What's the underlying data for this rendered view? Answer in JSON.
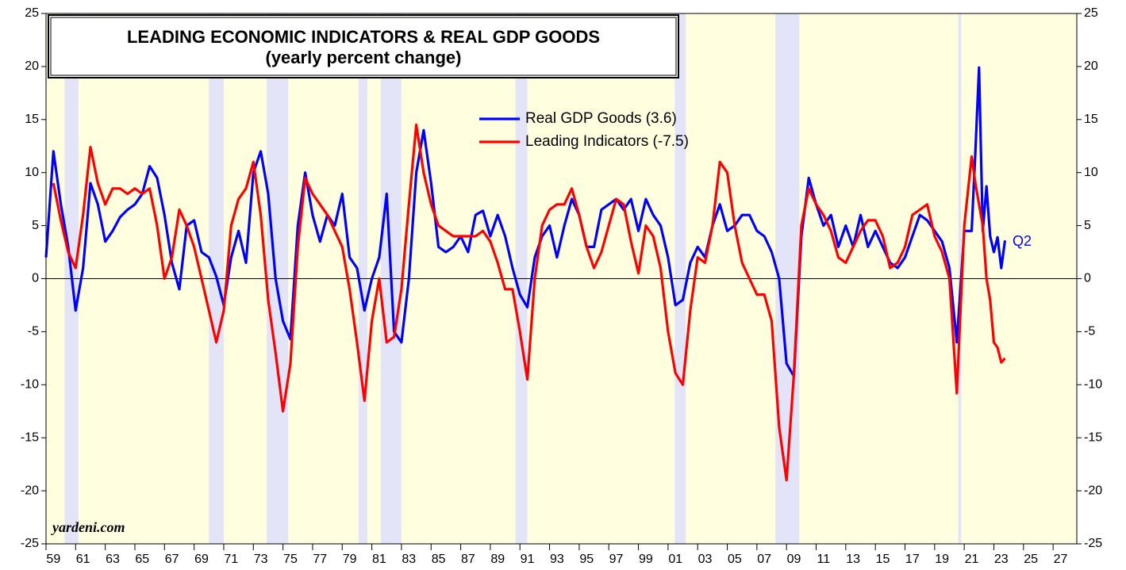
{
  "chart_data": {
    "type": "line",
    "title": "LEADING ECONOMIC INDICATORS & REAL GDP GOODS",
    "subtitle": "(yearly percent change)",
    "annotation": "Q2",
    "source": "yardeni.com",
    "xlim": [
      1959,
      2028.6
    ],
    "ylim": [
      -25,
      25
    ],
    "yticks": [
      -25,
      -20,
      -15,
      -10,
      -5,
      0,
      5,
      10,
      15,
      20,
      25
    ],
    "xticks": [
      {
        "value": 1959,
        "label": "59"
      },
      {
        "value": 1961,
        "label": "61"
      },
      {
        "value": 1963,
        "label": "63"
      },
      {
        "value": 1965,
        "label": "65"
      },
      {
        "value": 1967,
        "label": "67"
      },
      {
        "value": 1969,
        "label": "69"
      },
      {
        "value": 1971,
        "label": "71"
      },
      {
        "value": 1973,
        "label": "73"
      },
      {
        "value": 1975,
        "label": "75"
      },
      {
        "value": 1977,
        "label": "77"
      },
      {
        "value": 1979,
        "label": "79"
      },
      {
        "value": 1981,
        "label": "81"
      },
      {
        "value": 1983,
        "label": "83"
      },
      {
        "value": 1985,
        "label": "85"
      },
      {
        "value": 1987,
        "label": "87"
      },
      {
        "value": 1989,
        "label": "89"
      },
      {
        "value": 1991,
        "label": "91"
      },
      {
        "value": 1993,
        "label": "93"
      },
      {
        "value": 1995,
        "label": "95"
      },
      {
        "value": 1997,
        "label": "97"
      },
      {
        "value": 1999,
        "label": "99"
      },
      {
        "value": 2001,
        "label": "01"
      },
      {
        "value": 2003,
        "label": "03"
      },
      {
        "value": 2005,
        "label": "05"
      },
      {
        "value": 2007,
        "label": "07"
      },
      {
        "value": 2009,
        "label": "09"
      },
      {
        "value": 2011,
        "label": "11"
      },
      {
        "value": 2013,
        "label": "13"
      },
      {
        "value": 2015,
        "label": "15"
      },
      {
        "value": 2017,
        "label": "17"
      },
      {
        "value": 2019,
        "label": "19"
      },
      {
        "value": 2021,
        "label": "21"
      },
      {
        "value": 2023,
        "label": "23"
      },
      {
        "value": 2025,
        "label": "25"
      },
      {
        "value": 2027,
        "label": "27"
      }
    ],
    "recessions": [
      [
        1960.25,
        1961.2
      ],
      [
        1970.0,
        1971.0
      ],
      [
        1973.9,
        1975.35
      ],
      [
        1980.1,
        1980.7
      ],
      [
        1981.6,
        1983.0
      ],
      [
        1990.7,
        1991.5
      ],
      [
        2001.45,
        2002.2
      ],
      [
        2008.25,
        2009.86
      ],
      [
        2020.6,
        2020.8
      ]
    ],
    "background_color": "#ffffe0",
    "recession_color": "#e4e4f8",
    "x": [
      1959,
      1959.5,
      1960,
      1960.5,
      1961,
      1961.5,
      1962,
      1962.5,
      1963,
      1963.5,
      1964,
      1964.5,
      1965,
      1965.5,
      1966,
      1966.5,
      1967,
      1967.5,
      1968,
      1968.5,
      1969,
      1969.5,
      1970,
      1970.5,
      1971,
      1971.5,
      1972,
      1972.5,
      1973,
      1973.5,
      1974,
      1974.5,
      1975,
      1975.5,
      1976,
      1976.5,
      1977,
      1977.5,
      1978,
      1978.5,
      1979,
      1979.5,
      1980,
      1980.5,
      1981,
      1981.5,
      1982,
      1982.5,
      1983,
      1983.5,
      1984,
      1984.5,
      1985,
      1985.5,
      1986,
      1986.5,
      1987,
      1987.5,
      1988,
      1988.5,
      1989,
      1989.5,
      1990,
      1990.5,
      1991,
      1991.5,
      1992,
      1992.5,
      1993,
      1993.5,
      1994,
      1994.5,
      1995,
      1995.5,
      1996,
      1996.5,
      1997,
      1997.5,
      1998,
      1998.5,
      1999,
      1999.5,
      2000,
      2000.5,
      2001,
      2001.5,
      2002,
      2002.5,
      2003,
      2003.5,
      2004,
      2004.5,
      2005,
      2005.5,
      2006,
      2006.5,
      2007,
      2007.5,
      2008,
      2008.5,
      2009,
      2009.5,
      2010,
      2010.5,
      2011,
      2011.5,
      2012,
      2012.5,
      2013,
      2013.5,
      2014,
      2014.5,
      2015,
      2015.5,
      2016,
      2016.5,
      2017,
      2017.5,
      2018,
      2018.5,
      2019,
      2019.5,
      2020,
      2020.5,
      2021,
      2021.5,
      2021.75,
      2022,
      2022.25,
      2022.5,
      2022.75,
      2023,
      2023.25,
      2023.5,
      2023.75
    ],
    "series": [
      {
        "name": "Real GDP Goods (3.6)",
        "color": "#0000ff",
        "values": [
          2,
          12,
          7,
          3,
          -3,
          1,
          9,
          7,
          3.5,
          4.5,
          5.8,
          6.5,
          7,
          8,
          10.6,
          9.5,
          6,
          1.5,
          -1,
          5,
          5.5,
          2.5,
          2,
          0.2,
          -2.5,
          2,
          4.5,
          1.5,
          10,
          12,
          8,
          0,
          -4,
          -5.7,
          5,
          10,
          6,
          3.5,
          6,
          5,
          8,
          2,
          1,
          -3,
          0,
          2,
          8,
          -5,
          -6,
          0,
          10,
          14,
          9,
          3,
          2.5,
          3,
          4,
          2.5,
          6,
          6.4,
          4,
          6,
          4,
          1,
          -1.5,
          -2.7,
          2,
          4,
          5,
          2,
          5,
          7.5,
          6,
          3,
          3,
          6.5,
          7,
          7.5,
          6.5,
          7.5,
          4.5,
          7.5,
          6,
          5,
          2,
          -2.5,
          -2,
          1.5,
          3,
          2,
          5,
          7,
          4.5,
          5,
          6,
          6,
          4.5,
          4,
          2.5,
          0,
          -8,
          -9.2,
          4,
          9.5,
          7,
          5,
          6,
          3,
          5,
          3,
          6,
          3,
          4.5,
          3,
          1.5,
          1,
          2,
          4,
          6,
          5.5,
          4.5,
          3.5,
          1,
          -6,
          4.5,
          4.5,
          12,
          19.9,
          4.5,
          8.7,
          4,
          2.5,
          3.9,
          1,
          3.6
        ]
      },
      {
        "name": "Leading Indicators (-7.5)",
        "color": "#ff0000",
        "values": [
          null,
          9,
          5.5,
          2.5,
          1,
          6,
          12.4,
          9,
          7,
          8.5,
          8.5,
          8,
          8.5,
          8,
          8.5,
          5,
          0,
          2,
          6.5,
          5,
          3,
          0,
          -3,
          -6,
          -3,
          5,
          7.5,
          8.5,
          11,
          6,
          -2,
          -7,
          -12.5,
          -8,
          3,
          9.5,
          8,
          7,
          6,
          4.5,
          3,
          -1,
          -6,
          -11.5,
          -4,
          0,
          -6,
          -5.5,
          -1,
          7,
          14.5,
          10,
          7,
          5,
          4.5,
          4,
          4,
          4,
          4,
          4.5,
          3.5,
          1.5,
          -1,
          -1,
          -5,
          -9.5,
          0,
          5,
          6.5,
          7,
          7,
          8.5,
          6,
          3,
          1,
          2.5,
          5,
          7.5,
          7,
          3.5,
          0.5,
          5,
          4,
          1,
          -5,
          -8.9,
          -10,
          -3,
          2,
          1.5,
          5,
          11,
          10,
          5,
          1.5,
          0,
          -1.5,
          -1.5,
          -4,
          -14,
          -19,
          -9,
          5,
          8.5,
          7,
          6,
          4.5,
          2,
          1.5,
          3,
          4.5,
          5.5,
          5.5,
          4,
          1,
          1.5,
          3,
          6,
          6.5,
          7,
          4,
          2.5,
          0,
          -10.8,
          5,
          11.5,
          9,
          7,
          5,
          0,
          -2,
          -6,
          -6.5,
          -7.9,
          -7.5
        ]
      }
    ]
  }
}
